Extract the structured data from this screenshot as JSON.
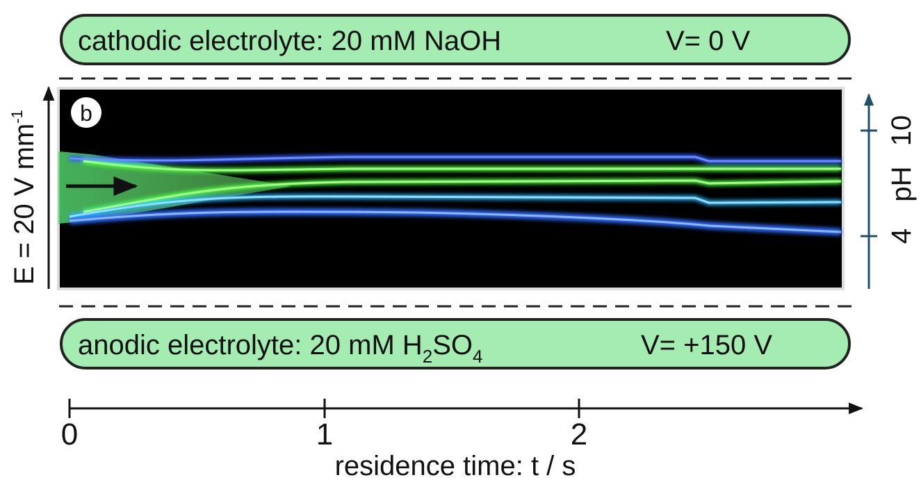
{
  "top_box": {
    "label": "cathodic electrolyte: 20 mM NaOH",
    "voltage": "V= 0 V"
  },
  "bottom_box": {
    "label": "anodic electrolyte: 20 mM H",
    "sub1": "2",
    "middle": "SO",
    "sub2": "4",
    "voltage": "V= +150 V"
  },
  "field_label": {
    "text": "E = 20 V mm",
    "exponent": "-1"
  },
  "panel_label": "b",
  "ph_axis": {
    "title": "pH",
    "ticks": [
      "10",
      "4"
    ]
  },
  "time_axis": {
    "title": "residence time: t / s",
    "ticks": [
      "0",
      "1",
      "2"
    ]
  }
}
